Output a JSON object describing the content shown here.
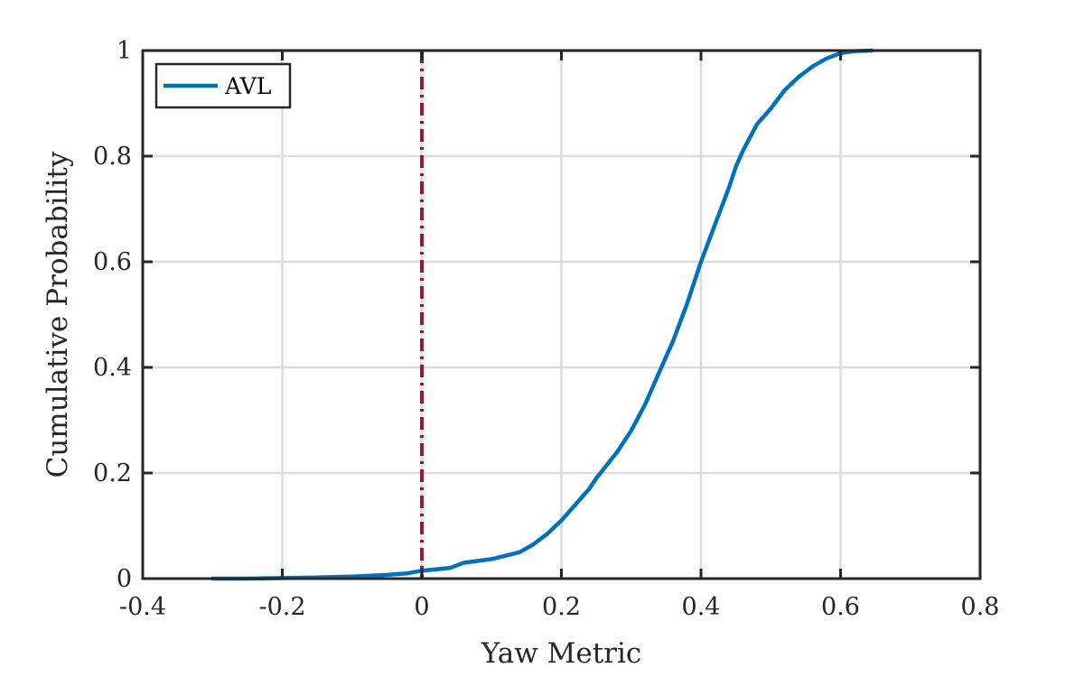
{
  "chart_data": {
    "type": "line",
    "title": "",
    "xlabel": "Yaw Metric",
    "ylabel": "Cumulative Probability",
    "xlim": [
      -0.4,
      0.8
    ],
    "ylim": [
      0,
      1
    ],
    "xticks": [
      -0.4,
      -0.2,
      0,
      0.2,
      0.4,
      0.6,
      0.8
    ],
    "xtick_labels": [
      "-0.4",
      "-0.2",
      "0",
      "0.2",
      "0.4",
      "0.6",
      "0.8"
    ],
    "yticks": [
      0,
      0.2,
      0.4,
      0.6,
      0.8,
      1
    ],
    "ytick_labels": [
      "0",
      "0.2",
      "0.4",
      "0.6",
      "0.8",
      "1"
    ],
    "grid": true,
    "legend_position": "top-left",
    "series": [
      {
        "name": "AVL",
        "color": "#0072BD",
        "x": [
          -0.3,
          -0.25,
          -0.2,
          -0.15,
          -0.1,
          -0.05,
          -0.02,
          0.0,
          0.04,
          0.06,
          0.1,
          0.14,
          0.16,
          0.18,
          0.2,
          0.22,
          0.24,
          0.25,
          0.28,
          0.3,
          0.32,
          0.34,
          0.36,
          0.38,
          0.4,
          0.42,
          0.44,
          0.45,
          0.46,
          0.48,
          0.5,
          0.52,
          0.54,
          0.56,
          0.58,
          0.6,
          0.62,
          0.645
        ],
        "y": [
          0.0,
          0.0,
          0.001,
          0.002,
          0.004,
          0.007,
          0.01,
          0.015,
          0.02,
          0.03,
          0.037,
          0.05,
          0.065,
          0.085,
          0.11,
          0.14,
          0.17,
          0.19,
          0.24,
          0.28,
          0.33,
          0.39,
          0.45,
          0.52,
          0.6,
          0.67,
          0.74,
          0.78,
          0.81,
          0.86,
          0.89,
          0.925,
          0.95,
          0.97,
          0.985,
          0.995,
          0.999,
          1.0
        ]
      }
    ],
    "reference_lines": [
      {
        "orientation": "vertical",
        "x": 0,
        "color": "#A2142F",
        "style": "dash-dot"
      }
    ]
  }
}
